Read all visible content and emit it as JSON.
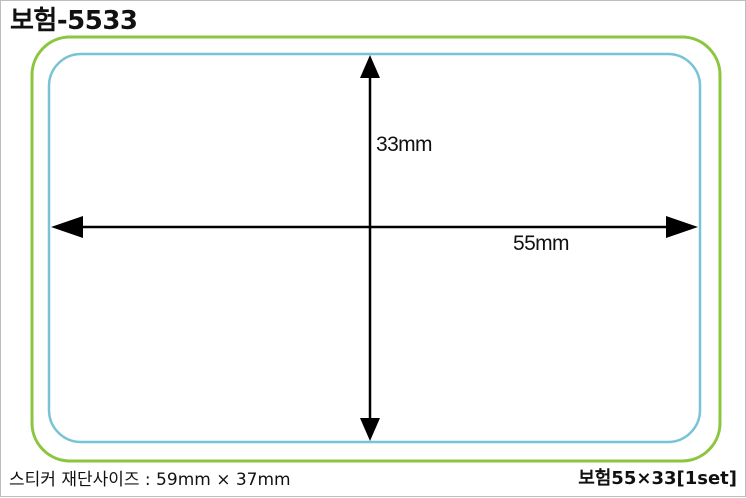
{
  "title": "보험-5533",
  "dimensions": {
    "height_label": "33mm",
    "width_label": "55mm"
  },
  "footer": {
    "cut_size": "스티커 재단사이즈 : 59mm × 37mm",
    "product": "보험55×33[1set]"
  },
  "colors": {
    "cut_line": "#8cc63e",
    "sticker_line": "#79c3d6",
    "arrow": "#000000"
  }
}
